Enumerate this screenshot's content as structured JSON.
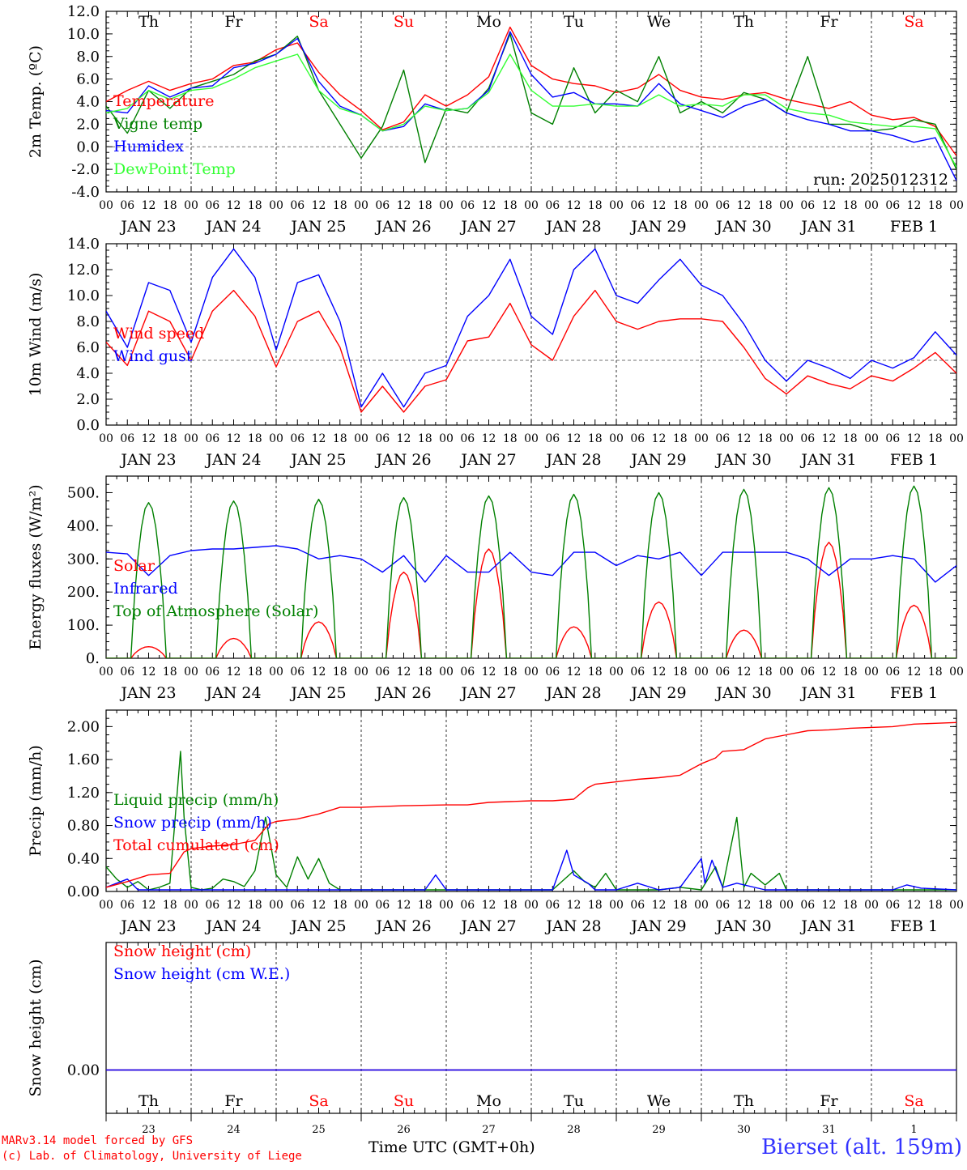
{
  "run_label": "run: 2025012312",
  "footer": {
    "model_line": "MARv3.14 model forced by GFS",
    "credit_line": "(c) Lab. of Climatology, University of Liege",
    "time_axis": "Time UTC (GMT+0h)",
    "station": "Bierset (alt. 159m)"
  },
  "days": {
    "names": [
      "Th",
      "Fr",
      "Sa",
      "Su",
      "Mo",
      "Tu",
      "We",
      "Th",
      "Fr",
      "Sa"
    ],
    "weekend_flags": [
      false,
      false,
      true,
      true,
      false,
      false,
      false,
      false,
      false,
      true
    ],
    "date_labels": [
      "JAN 23",
      "JAN 24",
      "JAN 25",
      "JAN 26",
      "JAN 27",
      "JAN 28",
      "JAN 29",
      "JAN 30",
      "JAN 31",
      "FEB  1"
    ],
    "day_numbers": [
      "23",
      "24",
      "25",
      "26",
      "27",
      "28",
      "29",
      "30",
      "31",
      "1"
    ],
    "hour_ticks": [
      "00",
      "06",
      "12",
      "18"
    ],
    "final_hour_tick": "00"
  },
  "colors": {
    "red": "#ff0000",
    "darkgreen": "#008000",
    "blue": "#0000ff",
    "lightgreen": "#33ff33",
    "weekend": "#ff0000",
    "axis": "#000000"
  },
  "chart_data": [
    {
      "type": "line",
      "ylabel": "2m Temp. (ºC)",
      "ylim": [
        -4,
        12
      ],
      "yticks": [
        "-4.0",
        "-2.0",
        "0.0",
        "2.0",
        "4.0",
        "6.0",
        "8.0",
        "10.0",
        "12.0"
      ],
      "reference_line": 0,
      "x_unit": "hours since JAN 23 00 UTC",
      "x": [
        0,
        6,
        12,
        18,
        24,
        30,
        36,
        42,
        48,
        54,
        60,
        66,
        72,
        78,
        84,
        90,
        96,
        102,
        108,
        114,
        120,
        126,
        132,
        138,
        144,
        150,
        156,
        162,
        168,
        174,
        180,
        186,
        192,
        198,
        204,
        210,
        216,
        222,
        228,
        234,
        240
      ],
      "series": [
        {
          "name": "Temperature",
          "color": "red",
          "values": [
            4.0,
            5.0,
            5.8,
            5.0,
            5.6,
            6.0,
            7.2,
            7.5,
            8.6,
            9.2,
            6.6,
            4.6,
            3.2,
            1.5,
            2.2,
            4.6,
            3.6,
            4.6,
            6.2,
            10.6,
            7.2,
            6.0,
            5.6,
            5.4,
            4.8,
            5.2,
            6.4,
            5.0,
            4.4,
            4.2,
            4.6,
            4.8,
            4.2,
            3.8,
            3.4,
            4.0,
            2.8,
            2.4,
            2.6,
            1.8,
            -0.8
          ]
        },
        {
          "name": "Vigne temp",
          "color": "darkgreen",
          "values": [
            3.6,
            1.2,
            5.0,
            3.4,
            5.2,
            5.8,
            6.4,
            7.6,
            8.2,
            9.8,
            5.0,
            2.0,
            -1.0,
            1.8,
            6.8,
            -1.4,
            3.4,
            3.0,
            5.2,
            10.0,
            3.0,
            2.0,
            7.0,
            3.0,
            5.0,
            4.0,
            8.0,
            3.0,
            4.0,
            3.0,
            4.8,
            4.2,
            3.0,
            8.0,
            2.0,
            2.0,
            1.4,
            1.6,
            2.4,
            2.0,
            -2.0
          ]
        },
        {
          "name": "Humidex",
          "color": "blue",
          "values": [
            3.2,
            3.0,
            5.4,
            4.4,
            5.2,
            5.4,
            7.0,
            7.4,
            8.2,
            9.6,
            5.8,
            3.6,
            2.8,
            1.4,
            1.8,
            3.8,
            3.2,
            3.4,
            5.0,
            10.2,
            6.4,
            4.4,
            4.8,
            3.8,
            3.8,
            3.6,
            5.6,
            3.8,
            3.2,
            2.6,
            3.6,
            4.2,
            3.0,
            2.4,
            2.0,
            1.4,
            1.4,
            1.0,
            0.4,
            0.8,
            -3.0
          ]
        },
        {
          "name": "DewPoint Temp",
          "color": "lightgreen",
          "values": [
            3.0,
            3.4,
            5.0,
            4.2,
            5.0,
            5.2,
            6.0,
            7.0,
            7.6,
            8.2,
            5.0,
            3.4,
            2.8,
            1.4,
            2.0,
            3.6,
            3.2,
            3.4,
            4.8,
            8.2,
            5.0,
            3.6,
            3.6,
            3.8,
            3.6,
            3.6,
            4.6,
            3.6,
            3.8,
            3.6,
            4.6,
            4.6,
            3.4,
            3.0,
            2.8,
            2.2,
            2.0,
            1.8,
            1.8,
            1.6,
            -1.8
          ]
        }
      ]
    },
    {
      "type": "line",
      "ylabel": "10m Wind (m/s)",
      "ylim": [
        0,
        14
      ],
      "yticks": [
        "0.0",
        "2.0",
        "4.0",
        "6.0",
        "8.0",
        "10.0",
        "12.0",
        "14.0"
      ],
      "reference_line": 5,
      "x_unit": "hours since JAN 23 00 UTC",
      "x": [
        0,
        6,
        12,
        18,
        24,
        30,
        36,
        42,
        48,
        54,
        60,
        66,
        72,
        78,
        84,
        90,
        96,
        102,
        108,
        114,
        120,
        126,
        132,
        138,
        144,
        150,
        156,
        162,
        168,
        174,
        180,
        186,
        192,
        198,
        204,
        210,
        216,
        222,
        228,
        234,
        240
      ],
      "series": [
        {
          "name": "Wind speed",
          "color": "red",
          "values": [
            6.4,
            4.6,
            8.8,
            8.0,
            5.0,
            8.8,
            10.4,
            8.4,
            4.5,
            8.0,
            8.8,
            6.0,
            1.0,
            3.0,
            1.0,
            3.0,
            3.5,
            6.5,
            6.8,
            9.4,
            6.2,
            5.0,
            8.4,
            10.4,
            8.0,
            7.4,
            8.0,
            8.2,
            8.2,
            8.0,
            6.0,
            3.6,
            2.4,
            3.8,
            3.2,
            2.8,
            3.8,
            3.4,
            4.4,
            5.6,
            4.0
          ]
        },
        {
          "name": "Wind gust",
          "color": "blue",
          "values": [
            8.8,
            6.0,
            11.0,
            10.4,
            6.4,
            11.4,
            13.6,
            11.4,
            5.8,
            11.0,
            11.6,
            8.0,
            1.4,
            4.0,
            1.4,
            4.0,
            4.6,
            8.4,
            10.0,
            12.8,
            8.4,
            7.0,
            12.0,
            13.6,
            10.0,
            9.4,
            11.2,
            12.8,
            10.8,
            10.0,
            7.8,
            5.0,
            3.4,
            5.0,
            4.4,
            3.6,
            5.0,
            4.4,
            5.2,
            7.2,
            5.4
          ]
        }
      ]
    },
    {
      "type": "line",
      "ylabel": "Energy fluxes (W/m²)",
      "ylim": [
        0,
        550
      ],
      "yticks": [
        "0.",
        "100.",
        "200.",
        "300.",
        "400.",
        "500."
      ],
      "x_unit": "hours since JAN 23 00 UTC",
      "series": [
        {
          "name": "Solar",
          "color": "red",
          "daily_peak": [
            35,
            60,
            110,
            260,
            330,
            95,
            170,
            85,
            350,
            160
          ]
        },
        {
          "name": "Infrared",
          "color": "blue",
          "x": [
            0,
            6,
            12,
            18,
            24,
            30,
            36,
            42,
            48,
            54,
            60,
            66,
            72,
            78,
            84,
            90,
            96,
            102,
            108,
            114,
            120,
            126,
            132,
            138,
            144,
            150,
            156,
            162,
            168,
            174,
            180,
            186,
            192,
            198,
            204,
            210,
            216,
            222,
            228,
            234,
            240
          ],
          "values": [
            320,
            315,
            250,
            310,
            325,
            330,
            330,
            335,
            340,
            330,
            300,
            310,
            300,
            260,
            310,
            230,
            310,
            260,
            260,
            320,
            260,
            250,
            320,
            320,
            280,
            310,
            300,
            320,
            250,
            320,
            320,
            320,
            320,
            300,
            250,
            300,
            300,
            310,
            300,
            230,
            280
          ]
        },
        {
          "name": "Top of Atmosphere (Solar)",
          "color": "darkgreen",
          "daily_peak": [
            470,
            475,
            480,
            485,
            490,
            495,
            500,
            510,
            515,
            520
          ]
        }
      ]
    },
    {
      "type": "line",
      "ylabel": "Precip (mm/h)",
      "ylim": [
        0,
        2.2
      ],
      "yticks": [
        "0.00",
        "0.40",
        "0.80",
        "1.20",
        "1.60",
        "2.00"
      ],
      "x_unit": "hours since JAN 23 00 UTC",
      "series": [
        {
          "name": "Liquid precip (mm/h)",
          "color": "darkgreen",
          "x": [
            0,
            3,
            6,
            9,
            12,
            15,
            18,
            21,
            22,
            24,
            27,
            30,
            33,
            36,
            39,
            42,
            45,
            48,
            51,
            54,
            57,
            60,
            63,
            66,
            72,
            96,
            102,
            108,
            114,
            120,
            126,
            132,
            135,
            138,
            141,
            144,
            150,
            156,
            162,
            168,
            172,
            174,
            178,
            180,
            182,
            186,
            190,
            192,
            196,
            200,
            204,
            210,
            216,
            222,
            228,
            234,
            240
          ],
          "values": [
            0.3,
            0.15,
            0.05,
            0.12,
            0.02,
            0.05,
            0.1,
            1.7,
            0.9,
            0.05,
            0.02,
            0.04,
            0.15,
            0.12,
            0.06,
            0.25,
            0.9,
            0.2,
            0.05,
            0.42,
            0.15,
            0.4,
            0.1,
            0.02,
            0.02,
            0.02,
            0.02,
            0.02,
            0.02,
            0.02,
            0.02,
            0.25,
            0.12,
            0.05,
            0.22,
            0.02,
            0.02,
            0.02,
            0.05,
            0.02,
            0.3,
            0.05,
            0.9,
            0.05,
            0.22,
            0.08,
            0.22,
            0.02,
            0.02,
            0.02,
            0.02,
            0.02,
            0.02,
            0.02,
            0.02,
            0.02,
            0.02
          ]
        },
        {
          "name": "Snow precip (mm/h)",
          "color": "blue",
          "x": [
            0,
            3,
            6,
            9,
            12,
            60,
            90,
            93,
            96,
            126,
            130,
            132,
            136,
            138,
            144,
            150,
            156,
            162,
            168,
            169,
            171,
            174,
            178,
            186,
            200,
            210,
            222,
            226,
            230,
            240
          ],
          "values": [
            0.05,
            0.1,
            0.15,
            0.02,
            0.02,
            0.02,
            0.02,
            0.2,
            0.02,
            0.02,
            0.5,
            0.2,
            0.1,
            0.02,
            0.02,
            0.1,
            0.02,
            0.05,
            0.4,
            0.1,
            0.38,
            0.05,
            0.1,
            0.02,
            0.02,
            0.02,
            0.02,
            0.08,
            0.04,
            0.02
          ]
        },
        {
          "name": "Total cumulated (cm)",
          "color": "red",
          "x": [
            0,
            6,
            12,
            18,
            22,
            24,
            30,
            36,
            42,
            46,
            48,
            54,
            60,
            66,
            72,
            78,
            84,
            96,
            102,
            108,
            114,
            120,
            126,
            132,
            136,
            138,
            144,
            150,
            156,
            162,
            168,
            172,
            174,
            180,
            186,
            192,
            198,
            204,
            210,
            216,
            222,
            228,
            234,
            240
          ],
          "values": [
            0.05,
            0.12,
            0.2,
            0.22,
            0.48,
            0.52,
            0.55,
            0.57,
            0.62,
            0.82,
            0.85,
            0.88,
            0.94,
            1.02,
            1.02,
            1.03,
            1.04,
            1.05,
            1.05,
            1.08,
            1.09,
            1.1,
            1.1,
            1.12,
            1.26,
            1.3,
            1.33,
            1.36,
            1.38,
            1.41,
            1.55,
            1.62,
            1.7,
            1.72,
            1.85,
            1.9,
            1.95,
            1.96,
            1.98,
            1.99,
            2.0,
            2.03,
            2.04,
            2.05
          ]
        }
      ]
    },
    {
      "type": "line",
      "ylabel": "Snow height (cm)",
      "yticks": [
        "0.00"
      ],
      "x_unit": "hours since JAN 23 00 UTC",
      "x": [
        0,
        240
      ],
      "series": [
        {
          "name": "Snow height (cm)",
          "color": "red",
          "values": [
            0,
            0
          ]
        },
        {
          "name": "Snow height (cm W.E.)",
          "color": "blue",
          "values": [
            0,
            0
          ]
        }
      ]
    }
  ]
}
